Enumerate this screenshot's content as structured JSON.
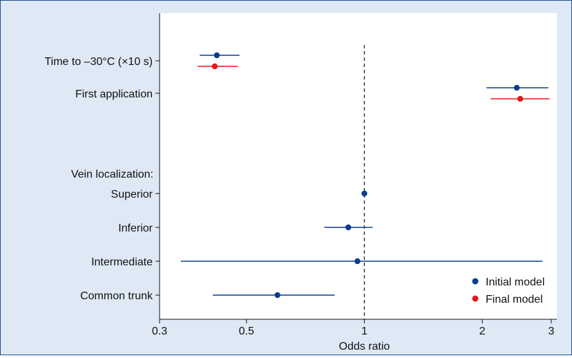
{
  "chart_data": {
    "type": "forest",
    "xlabel": "Odds ratio",
    "x_scale": "log",
    "xlim": [
      0.3,
      3.1
    ],
    "xticks": [
      {
        "value": 0.3,
        "label": "0.3"
      },
      {
        "value": 0.5,
        "label": "0.5"
      },
      {
        "value": 1,
        "label": "1"
      },
      {
        "value": 2,
        "label": "2"
      },
      {
        "value": 3,
        "label": "3"
      }
    ],
    "reference_line": 1,
    "rows": [
      {
        "label": "Time to –30°C (×10 s)",
        "tick": true
      },
      {
        "label": "First application",
        "tick": true
      },
      {
        "label": "",
        "tick": false
      },
      {
        "label": "Vein localization:",
        "tick": false
      },
      {
        "label": "Superior",
        "tick": true
      },
      {
        "label": "Inferior",
        "tick": true
      },
      {
        "label": "Intermediate",
        "tick": true
      },
      {
        "label": "Common trunk",
        "tick": true
      }
    ],
    "series": [
      {
        "name": "Initial model",
        "color": "#0b3d91",
        "points": [
          {
            "row": "Time to –30°C (×10 s)",
            "or": 0.42,
            "lo": 0.38,
            "hi": 0.48
          },
          {
            "row": "First application",
            "or": 2.45,
            "lo": 2.05,
            "hi": 2.95
          },
          {
            "row": "Superior",
            "or": 1.0,
            "lo": 1.0,
            "hi": 1.0
          },
          {
            "row": "Inferior",
            "or": 0.91,
            "lo": 0.79,
            "hi": 1.05
          },
          {
            "row": "Intermediate",
            "or": 0.96,
            "lo": 0.34,
            "hi": 2.85
          },
          {
            "row": "Common trunk",
            "or": 0.6,
            "lo": 0.41,
            "hi": 0.84
          }
        ]
      },
      {
        "name": "Final model",
        "color": "#e8161b",
        "points": [
          {
            "row": "Time to –30°C (×10 s)",
            "or": 0.415,
            "lo": 0.375,
            "hi": 0.475
          },
          {
            "row": "First application",
            "or": 2.5,
            "lo": 2.1,
            "hi": 2.97
          }
        ]
      }
    ],
    "legend": {
      "position": "bottom-right"
    }
  }
}
